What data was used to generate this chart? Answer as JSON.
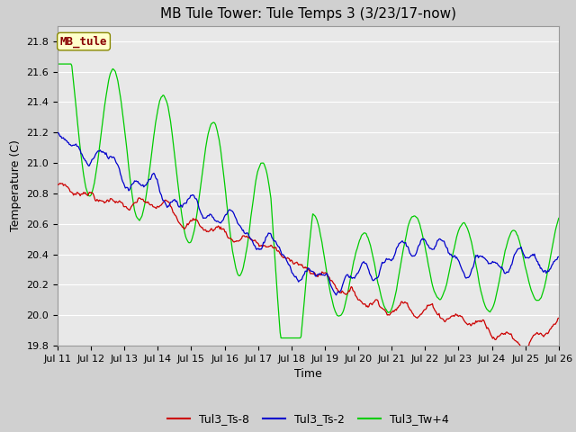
{
  "title": "MB Tule Tower: Tule Temps 3 (3/23/17-now)",
  "xlabel": "Time",
  "ylabel": "Temperature (C)",
  "ylim": [
    19.8,
    21.9
  ],
  "yticks": [
    19.8,
    20.0,
    20.2,
    20.4,
    20.6,
    20.8,
    21.0,
    21.2,
    21.4,
    21.6,
    21.8
  ],
  "xtick_labels": [
    "Jul 11",
    "Jul 12",
    "Jul 13",
    "Jul 14",
    "Jul 15",
    "Jul 16",
    "Jul 17",
    "Jul 18",
    "Jul 19",
    "Jul 20",
    "Jul 21",
    "Jul 22",
    "Jul 23",
    "Jul 24",
    "Jul 25",
    "Jul 26"
  ],
  "series_colors": [
    "#cc0000",
    "#0000cc",
    "#00cc00"
  ],
  "series_labels": [
    "Tul3_Ts-8",
    "Tul3_Ts-2",
    "Tul3_Tw+4"
  ],
  "label_box_text": "MB_tule",
  "label_box_text_color": "#880000",
  "label_box_face": "#ffffcc",
  "label_box_edge": "#888800",
  "plot_bg_color": "#e8e8e8",
  "fig_bg_color": "#d0d0d0",
  "grid_color": "#ffffff",
  "title_fontsize": 11,
  "axis_fontsize": 9,
  "tick_fontsize": 8
}
